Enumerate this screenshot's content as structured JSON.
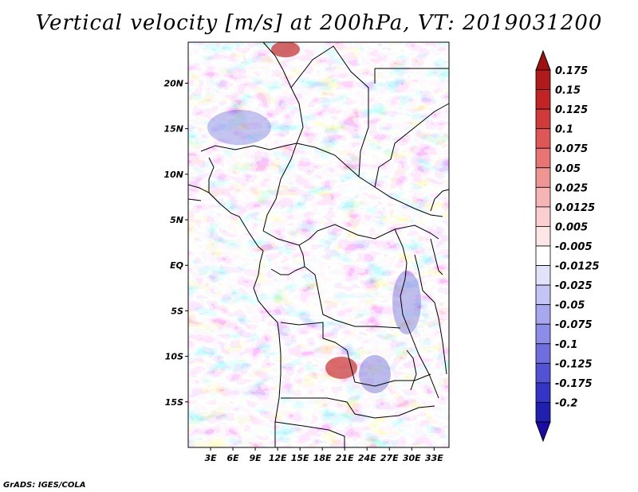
{
  "title": "Vertical velocity [m/s] at 200hPa, VT: 2019031200",
  "credit": "GrADS: IGES/COLA",
  "map": {
    "lon_range": [
      0,
      35
    ],
    "lat_range": [
      -20,
      24.5
    ],
    "lat_ticks": [
      {
        "value": 20,
        "label": "20N"
      },
      {
        "value": 15,
        "label": "15N"
      },
      {
        "value": 10,
        "label": "10N"
      },
      {
        "value": 5,
        "label": "5N"
      },
      {
        "value": 0,
        "label": "EQ"
      },
      {
        "value": -5,
        "label": "5S"
      },
      {
        "value": -10,
        "label": "10S"
      },
      {
        "value": -15,
        "label": "15S"
      }
    ],
    "lon_ticks": [
      {
        "value": 3,
        "label": "3E"
      },
      {
        "value": 6,
        "label": "6E"
      },
      {
        "value": 9,
        "label": "9E"
      },
      {
        "value": 12,
        "label": "12E"
      },
      {
        "value": 15,
        "label": "15E"
      },
      {
        "value": 18,
        "label": "18E"
      },
      {
        "value": 21,
        "label": "21E"
      },
      {
        "value": 24,
        "label": "24E"
      },
      {
        "value": 27,
        "label": "27E"
      },
      {
        "value": 30,
        "label": "30E"
      },
      {
        "value": 33,
        "label": "33E"
      }
    ]
  },
  "colorbar": {
    "levels": [
      {
        "label": "0.175",
        "color": "#b01a1a"
      },
      {
        "label": "0.15",
        "color": "#c22424"
      },
      {
        "label": "0.125",
        "color": "#d23a3a"
      },
      {
        "label": "0.1",
        "color": "#de5656"
      },
      {
        "label": "0.075",
        "color": "#e87474"
      },
      {
        "label": "0.05",
        "color": "#f19494"
      },
      {
        "label": "0.025",
        "color": "#f7b4b4"
      },
      {
        "label": "0.0125",
        "color": "#fbcfcf"
      },
      {
        "label": "0.005",
        "color": "#fde6e6"
      },
      {
        "label": "-0.005",
        "color": "#ffffff"
      },
      {
        "label": "-0.0125",
        "color": "#e2e2fb"
      },
      {
        "label": "-0.025",
        "color": "#c4c4f6"
      },
      {
        "label": "-0.05",
        "color": "#a7a7f0"
      },
      {
        "label": "-0.075",
        "color": "#8c8ce9"
      },
      {
        "label": "-0.1",
        "color": "#6e6edf"
      },
      {
        "label": "-0.125",
        "color": "#5252d4"
      },
      {
        "label": "-0.175",
        "color": "#3434c6"
      },
      {
        "label": "-0.2",
        "color": "#2020b0"
      }
    ],
    "top_arrow_color": "#a01010",
    "bottom_arrow_color": "#1a0aa8"
  }
}
